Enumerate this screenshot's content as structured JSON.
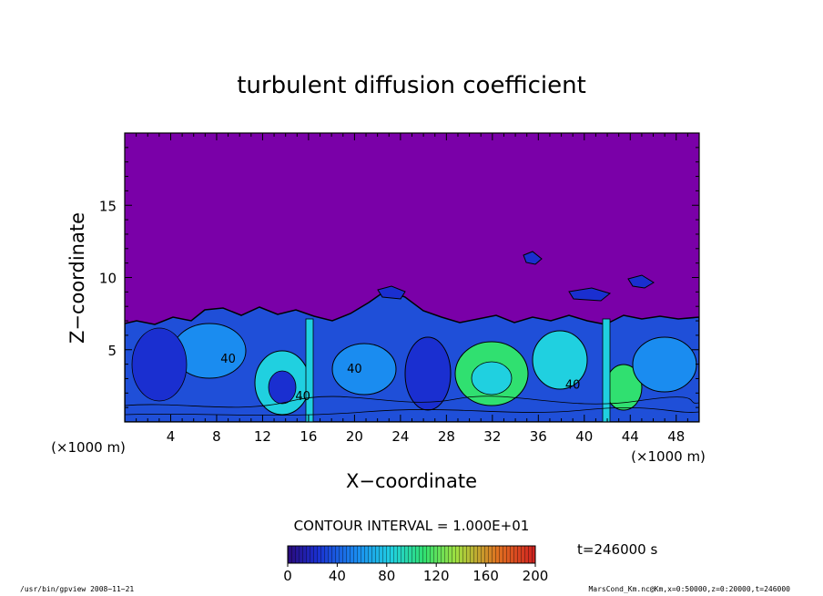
{
  "chart_data": {
    "type": "heatmap",
    "title": "turbulent diffusion coefficient",
    "xlabel": "X−coordinate",
    "ylabel": "Z−coordinate",
    "x_unit": "(×1000 m)",
    "y_unit": "(×1000 m)",
    "xlim": [
      0,
      50
    ],
    "ylim": [
      0,
      20
    ],
    "x_ticks": [
      4,
      8,
      12,
      16,
      20,
      24,
      28,
      32,
      36,
      40,
      44,
      48
    ],
    "y_ticks": [
      5,
      10,
      15
    ],
    "contour_interval_text": "CONTOUR INTERVAL = 1.000E+01",
    "contour_labels": [
      "40",
      "40",
      "40",
      "40"
    ],
    "colorbar": {
      "min": 0,
      "max": 200,
      "ticks": [
        0,
        40,
        80,
        120,
        160,
        200
      ],
      "colors": [
        "#2a0a7a",
        "#1a2fd0",
        "#1a8cf0",
        "#20d0e0",
        "#30e070",
        "#a0e040",
        "#e07020",
        "#d02020"
      ]
    },
    "background_color": "#7a00a8",
    "time_label": "t=246000 s"
  },
  "footer": {
    "left": "/usr/bin/gpview   2008−11−21",
    "right": "MarsCond_Km.nc@Km,x=0:50000,z=0:20000,t=246000"
  }
}
